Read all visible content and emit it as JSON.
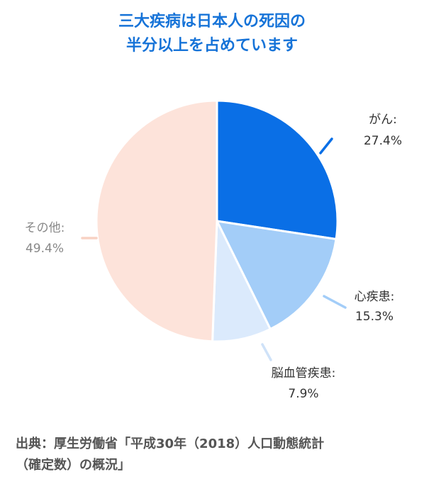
{
  "title": {
    "line1": "三大疾病は日本人の死因の",
    "line2": "半分以上を占めています"
  },
  "chart_data": {
    "type": "pie",
    "start_angle": "12 o'clock",
    "direction": "clockwise",
    "legend": "none",
    "slices": [
      {
        "name": "がん:",
        "value": 27.4,
        "value_label": "27.4%",
        "color": "#0a6fe6",
        "leader_color": "#0a6fe6",
        "label_color": "#333333"
      },
      {
        "name": "心疾患:",
        "value": 15.3,
        "value_label": "15.3%",
        "color": "#a3cdf8",
        "leader_color": "#a3cdf8",
        "label_color": "#333333"
      },
      {
        "name": "脳血管疾患:",
        "value": 7.9,
        "value_label": "7.9%",
        "color": "#dbeafc",
        "leader_color": "#cfe2f8",
        "label_color": "#333333"
      },
      {
        "name": "その他:",
        "value": 49.4,
        "value_label": "49.4%",
        "color": "#fde3da",
        "leader_color": "#f8d2c4",
        "label_color": "#888888"
      }
    ]
  },
  "source": {
    "line1": "出典：厚生労働省「平成30年（2018）人口動態統計",
    "line2": "（確定数）の概況」"
  }
}
